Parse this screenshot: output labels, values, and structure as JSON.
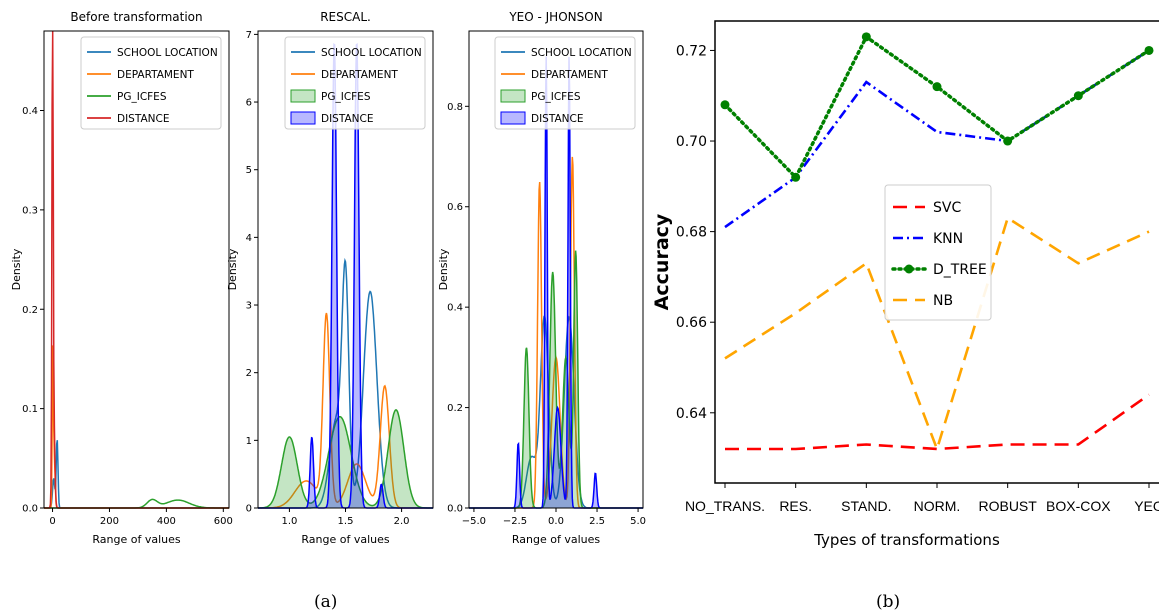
{
  "captions": {
    "a": "(a)",
    "b": "(b)"
  },
  "chart_data": [
    {
      "type": "area",
      "title": "Before transformation",
      "xlabel": "Range of values",
      "ylabel": "Density",
      "xlim": [
        -30,
        620
      ],
      "ylim": [
        0,
        0.48
      ],
      "xticks": [
        "0",
        "200",
        "400",
        "600"
      ],
      "xtick_values": [
        0,
        200,
        400,
        600
      ],
      "yticks": [
        "0.0",
        "0.1",
        "0.2",
        "0.3",
        "0.4"
      ],
      "ytick_values": [
        0,
        0.1,
        0.2,
        0.3,
        0.4
      ],
      "legend": "top-right",
      "series": [
        {
          "name": "SCHOOL LOCATION",
          "color": "#1f77b4",
          "filled": false,
          "peaks": [
            [
              16,
              0.07,
              3
            ],
            [
              4,
              0.03,
              4
            ]
          ]
        },
        {
          "name": "DEPARTAMENT",
          "color": "#ff7f0e",
          "filled": false,
          "peaks": [
            [
              1,
              0.16,
              2
            ],
            [
              6,
              0.05,
              3
            ]
          ]
        },
        {
          "name": "PG_ICFES",
          "color": "#2ca02c",
          "filled": false,
          "peaks": [
            [
              350,
              0.008,
              18
            ],
            [
              440,
              0.008,
              40
            ]
          ]
        },
        {
          "name": "DISTANCE",
          "color": "#d62728",
          "filled": false,
          "peaks": [
            [
              0,
              0.465,
              2
            ],
            [
              3,
              0.12,
              4
            ]
          ]
        }
      ]
    },
    {
      "type": "area",
      "title": "RESCAL.",
      "xlabel": "Range of values",
      "ylabel": "Density",
      "xlim": [
        0.72,
        2.28
      ],
      "ylim": [
        0,
        7.05
      ],
      "xticks": [
        "1.0",
        "1.5",
        "2.0"
      ],
      "xtick_values": [
        1.0,
        1.5,
        2.0
      ],
      "yticks": [
        "0",
        "1",
        "2",
        "3",
        "4",
        "5",
        "6",
        "7"
      ],
      "ytick_values": [
        0,
        1,
        2,
        3,
        4,
        5,
        6,
        7
      ],
      "legend": "top-right",
      "series": [
        {
          "name": "SCHOOL LOCATION",
          "color": "#1f77b4",
          "filled": false,
          "peaks": [
            [
              1.5,
              3.1,
              0.03
            ],
            [
              1.72,
              3.2,
              0.06
            ],
            [
              1.42,
              1.3,
              0.06
            ]
          ]
        },
        {
          "name": "DEPARTAMENT",
          "color": "#ff7f0e",
          "filled": false,
          "peaks": [
            [
              1.33,
              2.8,
              0.03
            ],
            [
              1.85,
              1.8,
              0.04
            ],
            [
              1.6,
              0.65,
              0.08
            ],
            [
              1.15,
              0.4,
              0.1
            ]
          ]
        },
        {
          "name": "PG_ICFES",
          "color": "#2ca02c",
          "filled": true,
          "fill": "rgba(44,160,44,0.28)",
          "peaks": [
            [
              1.0,
              1.05,
              0.07
            ],
            [
              1.45,
              1.35,
              0.1
            ],
            [
              1.95,
              1.45,
              0.07
            ]
          ]
        },
        {
          "name": "DISTANCE",
          "color": "#0000ff",
          "filled": true,
          "fill": "rgba(0,0,255,0.28)",
          "peaks": [
            [
              1.4,
              6.9,
              0.02
            ],
            [
              1.6,
              6.9,
              0.02
            ],
            [
              1.2,
              1.05,
              0.015
            ],
            [
              1.82,
              0.35,
              0.015
            ]
          ]
        }
      ]
    },
    {
      "type": "area",
      "title": "YEO - JHONSON",
      "xlabel": "Range of values",
      "ylabel": "Density",
      "xlim": [
        -5.3,
        5.3
      ],
      "ylim": [
        0,
        0.95
      ],
      "xticks": [
        "−5.0",
        "−2.5",
        "0.0",
        "2.5",
        "5.0"
      ],
      "xtick_values": [
        -5,
        -2.5,
        0,
        2.5,
        5
      ],
      "yticks": [
        "0.0",
        "0.2",
        "0.4",
        "0.6",
        "0.8"
      ],
      "ytick_values": [
        0,
        0.2,
        0.4,
        0.6,
        0.8
      ],
      "legend": "top-right",
      "series": [
        {
          "name": "SCHOOL LOCATION",
          "color": "#1f77b4",
          "filled": false,
          "peaks": [
            [
              -0.7,
              0.38,
              0.25
            ],
            [
              0.8,
              0.38,
              0.3
            ],
            [
              -1.5,
              0.1,
              0.3
            ]
          ]
        },
        {
          "name": "DEPARTAMENT",
          "color": "#ff7f0e",
          "filled": false,
          "peaks": [
            [
              -1.0,
              0.65,
              0.12
            ],
            [
              1.0,
              0.7,
              0.12
            ],
            [
              0.0,
              0.3,
              0.25
            ]
          ]
        },
        {
          "name": "PG_ICFES",
          "color": "#2ca02c",
          "filled": true,
          "fill": "rgba(44,160,44,0.28)",
          "peaks": [
            [
              -1.8,
              0.32,
              0.15
            ],
            [
              -0.2,
              0.47,
              0.18
            ],
            [
              1.2,
              0.51,
              0.12
            ],
            [
              0.6,
              0.3,
              0.2
            ]
          ]
        },
        {
          "name": "DISTANCE",
          "color": "#0000ff",
          "filled": true,
          "fill": "rgba(0,0,255,0.28)",
          "peaks": [
            [
              -0.6,
              0.9,
              0.07
            ],
            [
              0.8,
              0.9,
              0.07
            ],
            [
              -2.3,
              0.13,
              0.08
            ],
            [
              2.4,
              0.07,
              0.08
            ],
            [
              0.1,
              0.2,
              0.2
            ]
          ]
        }
      ]
    },
    {
      "type": "line",
      "title": "",
      "xlabel": "Types of transformations",
      "ylabel": "Accuracy",
      "categories": [
        "NO_TRANS.",
        "RES.",
        "STAND.",
        "NORM.",
        "ROBUST",
        "BOX-COX",
        "YEO"
      ],
      "ylim": [
        0.6245,
        0.7265
      ],
      "yticks": [
        "0.64",
        "0.66",
        "0.68",
        "0.70",
        "0.72"
      ],
      "ytick_values": [
        0.64,
        0.66,
        0.68,
        0.7,
        0.72
      ],
      "legend": "center",
      "series": [
        {
          "name": "SVC",
          "color": "#ff0000",
          "dash": "long",
          "marker": false,
          "values": [
            0.632,
            0.632,
            0.633,
            0.632,
            0.633,
            0.633,
            0.644
          ]
        },
        {
          "name": "KNN",
          "color": "#0000ff",
          "dash": "dashdot",
          "marker": false,
          "values": [
            0.681,
            0.692,
            0.713,
            0.702,
            0.7,
            0.71,
            0.72
          ]
        },
        {
          "name": "D_TREE",
          "color": "#008000",
          "dash": "dotted",
          "marker": true,
          "values": [
            0.708,
            0.692,
            0.723,
            0.712,
            0.7,
            0.71,
            0.72
          ]
        },
        {
          "name": "NB",
          "color": "#ffa500",
          "dash": "long",
          "marker": false,
          "values": [
            0.652,
            0.662,
            0.673,
            0.632,
            0.683,
            0.673,
            0.68
          ]
        }
      ]
    }
  ]
}
